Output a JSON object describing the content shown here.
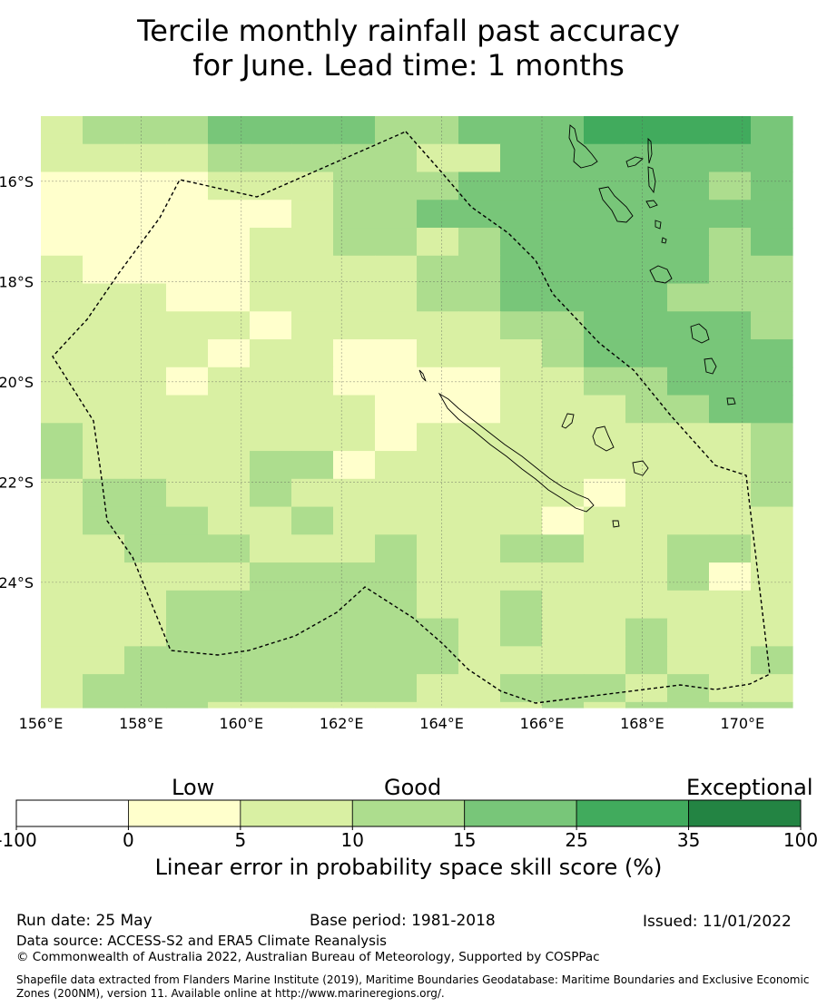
{
  "title_line1": "Tercile monthly rainfall past accuracy",
  "title_line2": "for June. Lead time: 1 months",
  "map": {
    "lon_range": [
      156,
      171
    ],
    "lat_range": [
      -26.5,
      -14.7
    ],
    "lon_ticks": [
      "156°E",
      "158°E",
      "160°E",
      "162°E",
      "164°E",
      "166°E",
      "168°E",
      "170°E"
    ],
    "lat_ticks": [
      "16°S",
      "18°S",
      "20°S",
      "22°S",
      "24°S"
    ],
    "boundary": "EEZ-dashed",
    "coastlines": [
      "new-caledonia",
      "vanuatu",
      "loyalty-islands"
    ]
  },
  "colorbar": {
    "categories": [
      "Low",
      "Good",
      "Exceptional"
    ],
    "bounds": [
      "-100",
      "0",
      "5",
      "10",
      "15",
      "25",
      "35",
      "100"
    ],
    "colors": [
      "#ffffff",
      "#ffffcc",
      "#d9f0a3",
      "#addd8e",
      "#78c679",
      "#41ab5d",
      "#238443"
    ],
    "label": "Linear error in probability space skill score (%)"
  },
  "footer": {
    "run_date": "Run date: 25 May",
    "base_period": "Base period: 1981-2018",
    "issued": "Issued: 11/01/2022",
    "data_source": "Data source: ACCESS-S2 and ERA5 Climate Reanalysis",
    "copyright": "© Commonwealth of Australia 2022, Australian Bureau of Meteorology, Supported by COSPPac",
    "shapefile": "Shapefile data extracted from Flanders Marine Institute (2019), Maritime Boundaries Geodatabase: Maritime Boundaries and Exclusive Economic Zones (200NM), version 11. Available online at http://www.marineregions.org/."
  }
}
